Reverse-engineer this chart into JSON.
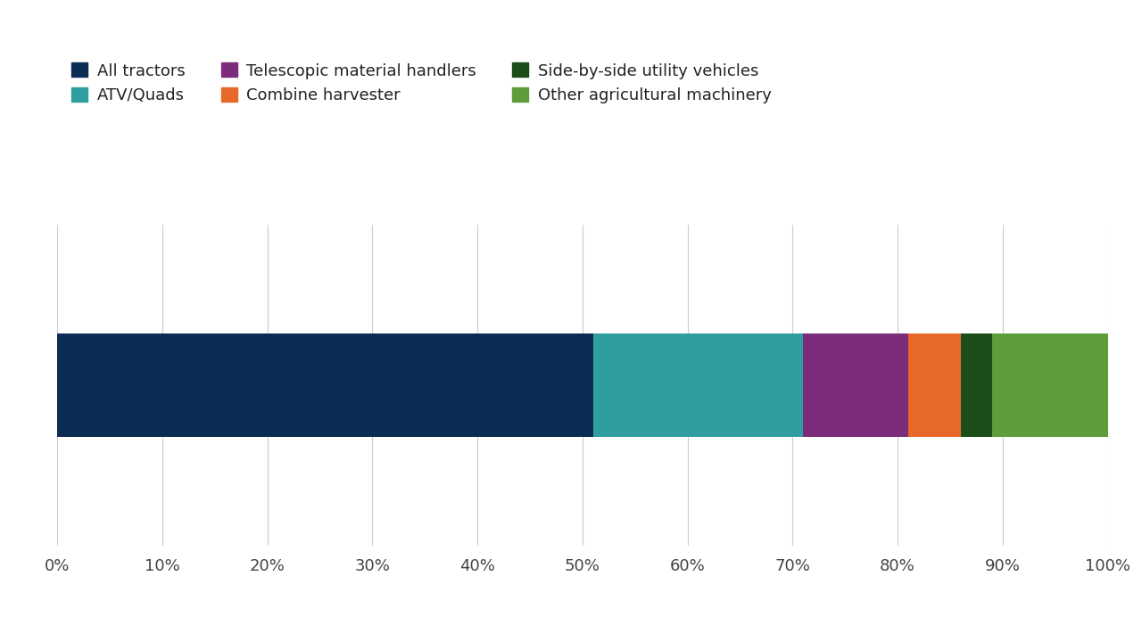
{
  "segments": [
    {
      "label": "All tractors",
      "value": 51,
      "color": "#0d2c54"
    },
    {
      "label": "ATV/Quads",
      "value": 20,
      "color": "#2e9e9e"
    },
    {
      "label": "Telescopic material handlers",
      "value": 10,
      "color": "#7b2d7b"
    },
    {
      "label": "Combine harvester",
      "value": 5,
      "color": "#e8682a"
    },
    {
      "label": "Side-by-side utility vehicles",
      "value": 3,
      "color": "#1a4d1a"
    },
    {
      "label": "Other agricultural machinery",
      "value": 11,
      "color": "#5d9e3a"
    }
  ],
  "legend_row1": [
    "All tractors",
    "ATV/Quads",
    "Telescopic material handlers"
  ],
  "legend_row2": [
    "Combine harvester",
    "Side-by-side utility vehicles",
    "Other agricultural machinery"
  ],
  "background_color": "#ffffff",
  "xlim": [
    0,
    100
  ],
  "xtick_labels": [
    "0%",
    "10%",
    "20%",
    "30%",
    "40%",
    "50%",
    "60%",
    "70%",
    "80%",
    "90%",
    "100%"
  ],
  "xtick_values": [
    0,
    10,
    20,
    30,
    40,
    50,
    60,
    70,
    80,
    90,
    100
  ],
  "bar_height": 0.42,
  "legend_fontsize": 13,
  "tick_fontsize": 13
}
